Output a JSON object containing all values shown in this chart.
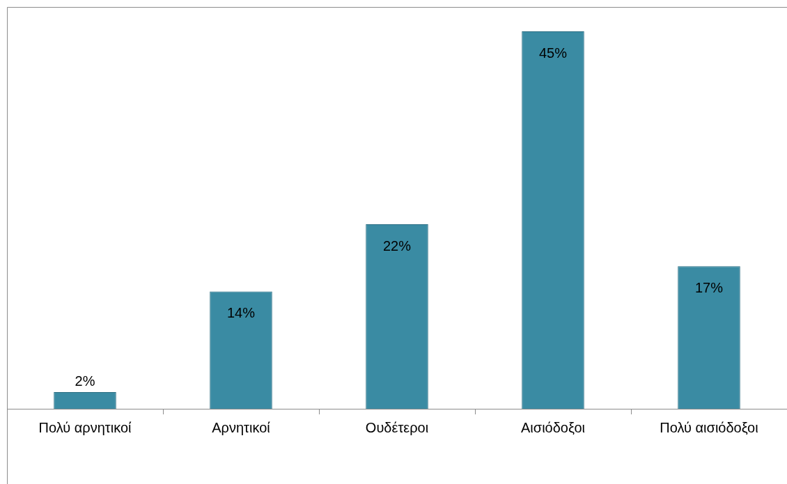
{
  "chart_data": {
    "type": "bar",
    "categories": [
      "Πολύ αρνητικοί",
      "Αρνητικοί",
      "Ουδέτεροι",
      "Αισιόδοξοι",
      "Πολύ αισιόδοξοι"
    ],
    "values": [
      2,
      14,
      22,
      45,
      17
    ],
    "value_labels": [
      "2%",
      "14%",
      "22%",
      "45%",
      "17%"
    ],
    "color": "#3a8ba3",
    "grid": false,
    "legend": false
  }
}
